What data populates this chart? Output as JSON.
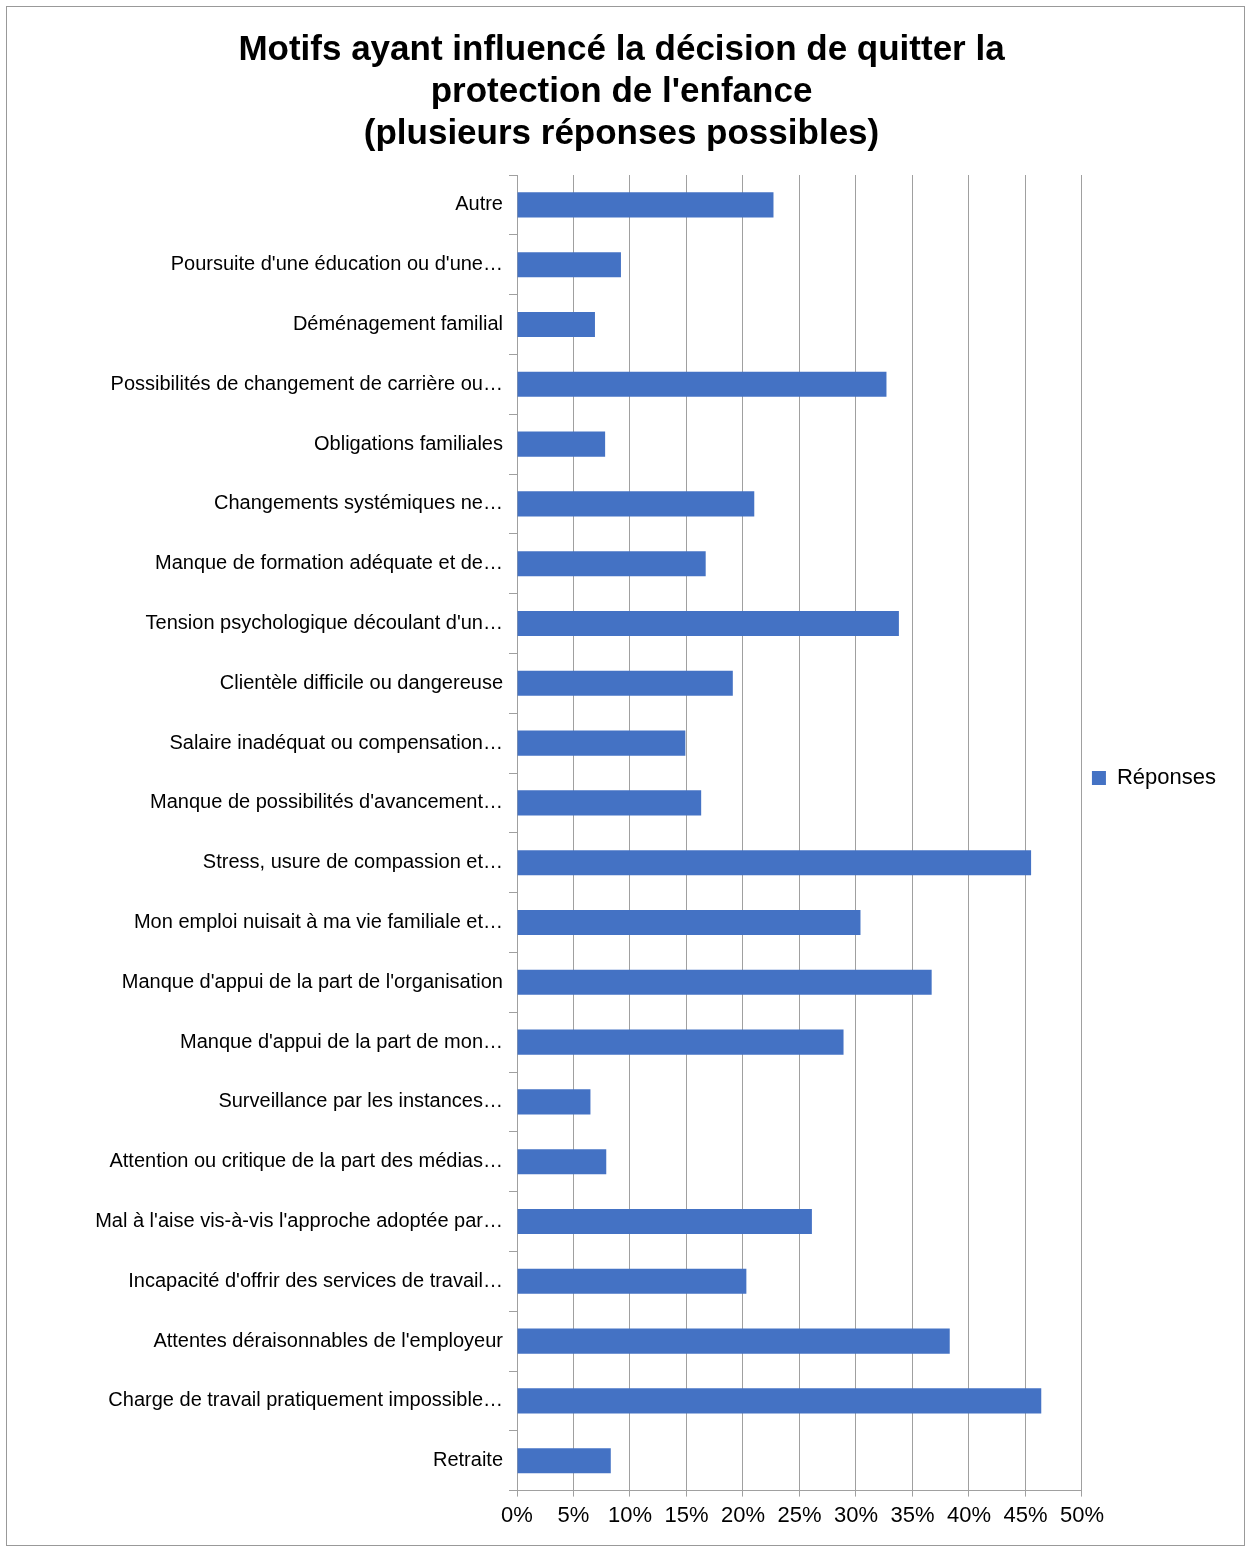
{
  "chart_data": {
    "type": "bar",
    "orientation": "horizontal",
    "title": "Motifs ayant influencé la décision de quitter la\nprotection de l'enfance\n(plusieurs réponses possibles)",
    "categories": [
      "Autre",
      "Poursuite d'une éducation ou d'une…",
      "Déménagement familial",
      "Possibilités de changement de carrière ou…",
      "Obligations familiales",
      "Changements systémiques ne…",
      "Manque de formation adéquate et de…",
      "Tension psychologique découlant d'un…",
      "Clientèle difficile ou dangereuse",
      "Salaire inadéquat ou compensation…",
      "Manque de possibilités d'avancement…",
      "Stress, usure de compassion et…",
      "Mon emploi nuisait à ma vie familiale et…",
      "Manque d'appui de la part de l'organisation",
      "Manque d'appui de la part de mon…",
      "Surveillance par les instances…",
      "Attention ou critique de la part des médias…",
      "Mal à l'aise vis-à-vis l'approche adoptée par…",
      "Incapacité d'offrir des services de travail…",
      "Attentes déraisonnables de l'employeur",
      "Charge de travail pratiquement impossible…",
      "Retraite"
    ],
    "series": [
      {
        "name": "Réponses",
        "color": "#4472c4",
        "values": [
          22.7,
          9.2,
          6.9,
          32.7,
          7.8,
          21.0,
          16.7,
          33.8,
          19.1,
          14.9,
          16.3,
          45.5,
          30.4,
          36.7,
          28.9,
          6.5,
          7.9,
          26.1,
          20.3,
          38.3,
          46.4,
          8.3
        ]
      }
    ],
    "xlim": [
      0,
      50
    ],
    "xticks": [
      {
        "value": 0,
        "label": "0%"
      },
      {
        "value": 5,
        "label": "5%"
      },
      {
        "value": 10,
        "label": "10%"
      },
      {
        "value": 15,
        "label": "15%"
      },
      {
        "value": 20,
        "label": "20%"
      },
      {
        "value": 25,
        "label": "25%"
      },
      {
        "value": 30,
        "label": "30%"
      },
      {
        "value": 35,
        "label": "35%"
      },
      {
        "value": 40,
        "label": "40%"
      },
      {
        "value": 45,
        "label": "45%"
      },
      {
        "value": 50,
        "label": "50%"
      }
    ],
    "grid": "x",
    "legend": "right"
  }
}
